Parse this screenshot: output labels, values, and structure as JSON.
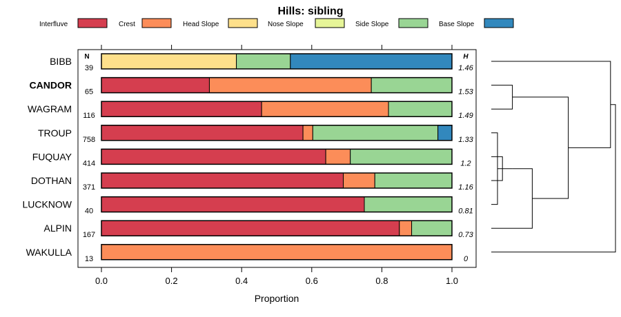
{
  "chart_data": {
    "type": "bar",
    "orientation": "horizontal-stacked",
    "title": "Hills: sibling",
    "xlabel": "Proportion",
    "ylabel": "",
    "xlim": [
      0,
      1
    ],
    "xticks": [
      "0.0",
      "0.2",
      "0.4",
      "0.6",
      "0.8",
      "1.0"
    ],
    "n_header": "N",
    "h_header": "H",
    "legend": [
      {
        "name": "Interfluve",
        "color": "#d53e4f"
      },
      {
        "name": "Crest",
        "color": "#fc8d59"
      },
      {
        "name": "Head Slope",
        "color": "#fee08b"
      },
      {
        "name": "Nose Slope",
        "color": "#e6f598"
      },
      {
        "name": "Side Slope",
        "color": "#99d594"
      },
      {
        "name": "Base Slope",
        "color": "#3288bd"
      }
    ],
    "rows": [
      {
        "label": "BIBB",
        "bold": false,
        "n": "39",
        "h": "1.46",
        "values": [
          0.0,
          0.0,
          0.385,
          0.0,
          0.154,
          0.461
        ]
      },
      {
        "label": "CANDOR",
        "bold": true,
        "n": "65",
        "h": "1.53",
        "values": [
          0.308,
          0.462,
          0.0,
          0.0,
          0.23,
          0.0
        ]
      },
      {
        "label": "WAGRAM",
        "bold": false,
        "n": "116",
        "h": "1.49",
        "values": [
          0.457,
          0.362,
          0.0,
          0.0,
          0.181,
          0.0
        ]
      },
      {
        "label": "TROUP",
        "bold": false,
        "n": "758",
        "h": "1.33",
        "values": [
          0.575,
          0.028,
          0.0,
          0.0,
          0.357,
          0.04
        ]
      },
      {
        "label": "FUQUAY",
        "bold": false,
        "n": "414",
        "h": "1.2",
        "values": [
          0.64,
          0.07,
          0.0,
          0.0,
          0.29,
          0.0
        ]
      },
      {
        "label": "DOTHAN",
        "bold": false,
        "n": "371",
        "h": "1.16",
        "values": [
          0.69,
          0.09,
          0.0,
          0.0,
          0.22,
          0.0
        ]
      },
      {
        "label": "LUCKNOW",
        "bold": false,
        "n": "40",
        "h": "0.81",
        "values": [
          0.75,
          0.0,
          0.0,
          0.0,
          0.25,
          0.0
        ]
      },
      {
        "label": "ALPIN",
        "bold": false,
        "n": "167",
        "h": "0.73",
        "values": [
          0.85,
          0.035,
          0.0,
          0.0,
          0.115,
          0.0
        ]
      },
      {
        "label": "WAKULLA",
        "bold": false,
        "n": "13",
        "h": "0",
        "values": [
          0.0,
          1.0,
          0.0,
          0.0,
          0.0,
          0.0
        ]
      }
    ],
    "dendrogram": {
      "leaf_order": [
        "BIBB",
        "CANDOR",
        "WAGRAM",
        "TROUP",
        "FUQUAY",
        "DOTHAN",
        "LUCKNOW",
        "ALPIN",
        "WAKULLA"
      ],
      "merges": [
        {
          "a": "CANDOR",
          "b": "WAGRAM",
          "height": 0.17
        },
        {
          "a": "FUQUAY",
          "b": "DOTHAN",
          "height": 0.09
        },
        {
          "a": "TROUP",
          "b": "LUCKNOW",
          "height": 0.05
        },
        {
          "a": "m2",
          "b": "m3",
          "height": 0.17
        },
        {
          "a": "m4",
          "b": "ALPIN",
          "height": 0.33
        },
        {
          "a": "m1",
          "b": "m5",
          "height": 0.62
        },
        {
          "a": "BIBB",
          "b": "m6",
          "height": 0.96
        },
        {
          "a": "m7",
          "b": "WAKULLA",
          "height": 1.0
        }
      ]
    }
  }
}
